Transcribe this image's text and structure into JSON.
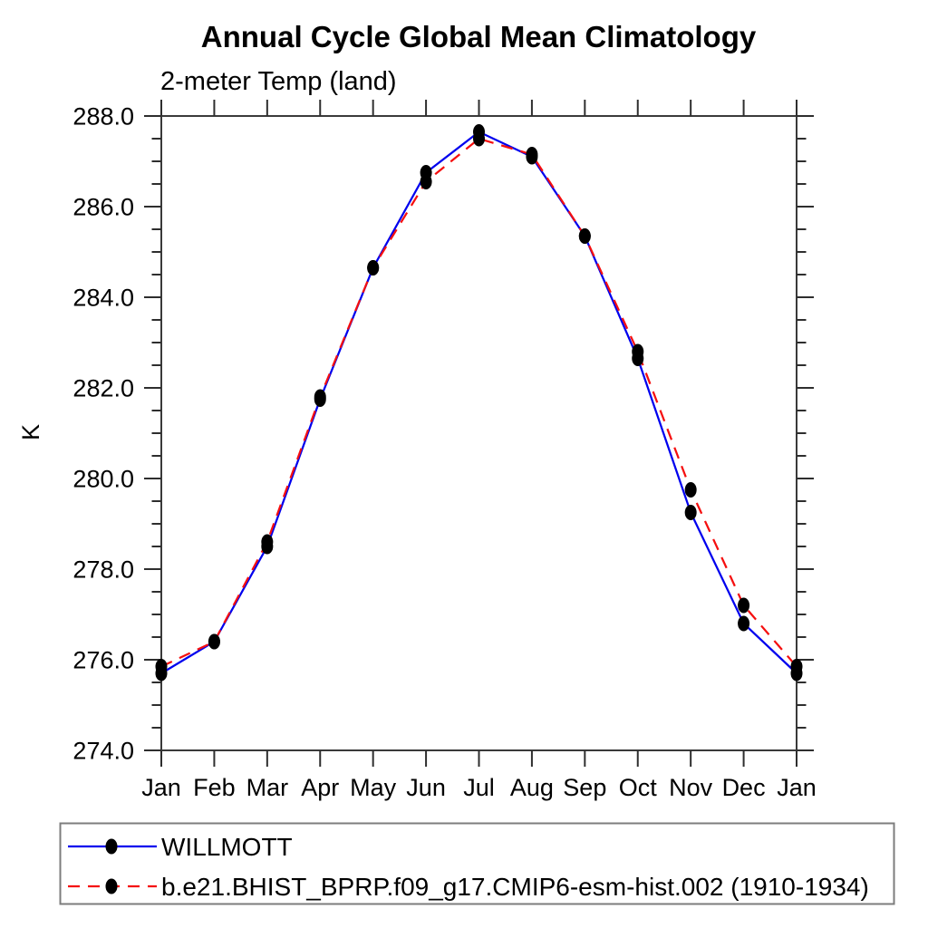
{
  "page": {
    "background": "#ffffff"
  },
  "chart_data": {
    "type": "line",
    "title": "Annual Cycle Global Mean Climatology",
    "subtitle": "2-meter Temp (land)",
    "ylabel": "K",
    "xlabel": "",
    "categories": [
      "Jan",
      "Feb",
      "Mar",
      "Apr",
      "May",
      "Jun",
      "Jul",
      "Aug",
      "Sep",
      "Oct",
      "Nov",
      "Dec",
      "Jan"
    ],
    "series": [
      {
        "name": "WILLMOTT",
        "color": "#0000ee",
        "line_style": "solid",
        "marker": "filled-circle",
        "marker_color": "#000000",
        "values": [
          275.7,
          276.4,
          278.5,
          281.75,
          284.65,
          286.75,
          287.65,
          287.1,
          285.35,
          282.65,
          279.25,
          276.8,
          275.7
        ]
      },
      {
        "name": "b.e21.BHIST_BPRP.f09_g17.CMIP6-esm-hist.002 (1910-1934)",
        "color": "#f50f0f",
        "line_style": "dashed",
        "marker": "filled-circle",
        "marker_color": "#000000",
        "values": [
          275.85,
          276.4,
          278.6,
          281.8,
          284.65,
          286.55,
          287.5,
          287.15,
          285.35,
          282.8,
          279.75,
          277.2,
          275.85
        ]
      }
    ],
    "ylim": [
      274.0,
      288.0
    ],
    "ytick_interval": 2.0,
    "ytick_minor_interval": 0.5,
    "ytick_labels": [
      "274.0",
      "276.0",
      "278.0",
      "280.0",
      "282.0",
      "284.0",
      "286.0",
      "288.0"
    ],
    "grid": false,
    "tick_direction": "out",
    "legend_position": "bottom-left"
  }
}
